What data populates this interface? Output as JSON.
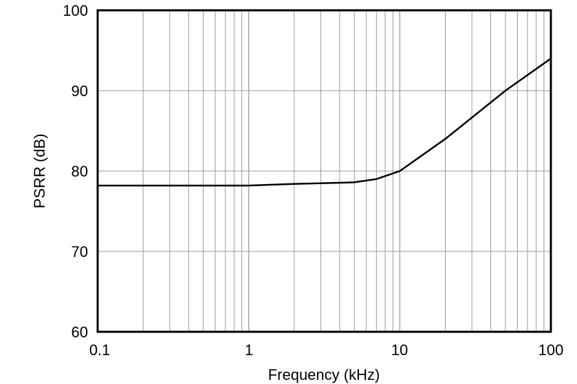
{
  "chart_data": {
    "type": "line",
    "title": "",
    "xlabel": "Frequency (kHz)",
    "ylabel": "PSRR (dB)",
    "xscale": "log",
    "xlim": [
      0.1,
      100
    ],
    "ylim": [
      60,
      100
    ],
    "grid": true,
    "legend": null,
    "x_ticks": [
      "0.1",
      "1",
      "10",
      "100"
    ],
    "y_ticks": [
      "60",
      "70",
      "80",
      "90",
      "100"
    ],
    "series": [
      {
        "name": "PSRR",
        "color": "#000000",
        "x": [
          0.1,
          0.2,
          0.5,
          1,
          2,
          5,
          7,
          10,
          20,
          50,
          100
        ],
        "y": [
          78.2,
          78.2,
          78.2,
          78.2,
          78.4,
          78.6,
          79.0,
          80.0,
          84.0,
          90.0,
          94.0
        ]
      }
    ]
  },
  "labels": {
    "xlabel": "Frequency (kHz)",
    "ylabel": "PSRR (dB)",
    "x_ticks": [
      "0.1",
      "1",
      "10",
      "100"
    ],
    "y_ticks": [
      "100",
      "90",
      "80",
      "70",
      "60"
    ]
  }
}
